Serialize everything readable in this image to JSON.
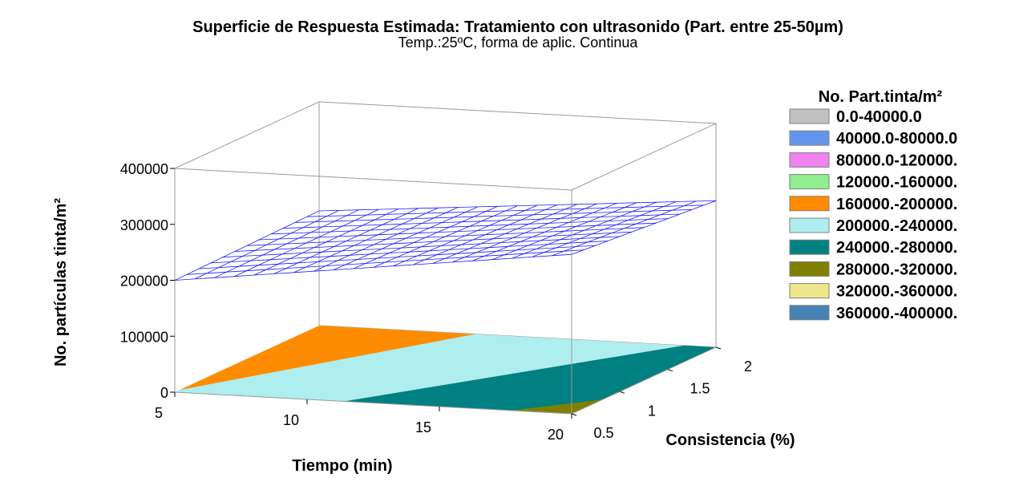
{
  "chart_data": {
    "type": "surface3d",
    "title": "Superficie de Respuesta Estimada: Tratamiento con ultrasonido (Part. entre 25-50µm)",
    "subtitle": "Temp.:25ºC, forma de aplic. Continua",
    "xlabel": "Tiempo (min)",
    "ylabel": "Consistencia (%)",
    "zlabel": "No. partículas tinta/m²",
    "x_ticks": [
      "5",
      "10",
      "15",
      "20"
    ],
    "y_ticks": [
      "0.5",
      "1",
      "1.5",
      "2"
    ],
    "z_ticks": [
      "0",
      "100000",
      "200000",
      "300000",
      "400000"
    ],
    "xlim": [
      5,
      20
    ],
    "ylim": [
      0.5,
      2
    ],
    "zlim": [
      0,
      400000
    ],
    "surface": {
      "corners": [
        {
          "x": 5,
          "y": 0.5,
          "z": 200000
        },
        {
          "x": 20,
          "y": 0.5,
          "z": 285000
        },
        {
          "x": 5,
          "y": 2,
          "z": 205000
        },
        {
          "x": 20,
          "y": 2,
          "z": 262000
        }
      ],
      "mesh_color": "#1a1aff"
    },
    "legend": {
      "title": "No. Part.tinta/m²",
      "position": "right",
      "items": [
        {
          "label": "0.0-40000.0",
          "color": "#c0c0c0"
        },
        {
          "label": "40000.0-80000.0",
          "color": "#6495ed"
        },
        {
          "label": "80000.0-120000.",
          "color": "#ee82ee"
        },
        {
          "label": "120000.-160000.",
          "color": "#90ee90"
        },
        {
          "label": "160000.-200000.",
          "color": "#ff8c00"
        },
        {
          "label": "200000.-240000.",
          "color": "#afeeee"
        },
        {
          "label": "240000.-280000.",
          "color": "#008080"
        },
        {
          "label": "280000.-320000.",
          "color": "#808000"
        },
        {
          "label": "320000.-360000.",
          "color": "#f0e68c"
        },
        {
          "label": "360000.-400000.",
          "color": "#4682b4"
        }
      ]
    }
  }
}
